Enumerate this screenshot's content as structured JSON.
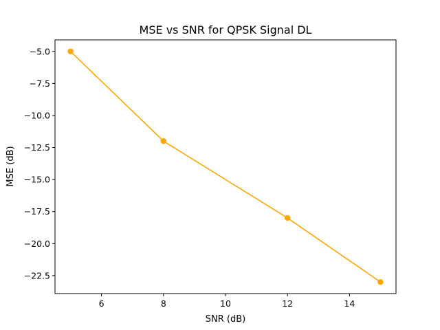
{
  "chart_data": {
    "type": "line",
    "title": "MSE vs SNR for QPSK Signal DL",
    "xlabel": "SNR (dB)",
    "ylabel": "MSE (dB)",
    "xlim": [
      4.5,
      15.5
    ],
    "ylim": [
      -23.9,
      -4.1
    ],
    "xticks": [
      6,
      8,
      10,
      12,
      14
    ],
    "xtick_labels": [
      "6",
      "8",
      "10",
      "12",
      "14"
    ],
    "yticks": [
      -5.0,
      -7.5,
      -10.0,
      -12.5,
      -15.0,
      -17.5,
      -20.0,
      -22.5
    ],
    "ytick_labels": [
      "−5.0",
      "−7.5",
      "−10.0",
      "−12.5",
      "−15.0",
      "−17.5",
      "−20.0",
      "−22.5"
    ],
    "grid": false,
    "legend": "none",
    "series": [
      {
        "color": "#ffa500",
        "marker": "circle",
        "x": [
          5,
          8,
          12,
          15
        ],
        "y": [
          -5,
          -12,
          -18,
          -23
        ]
      }
    ]
  }
}
